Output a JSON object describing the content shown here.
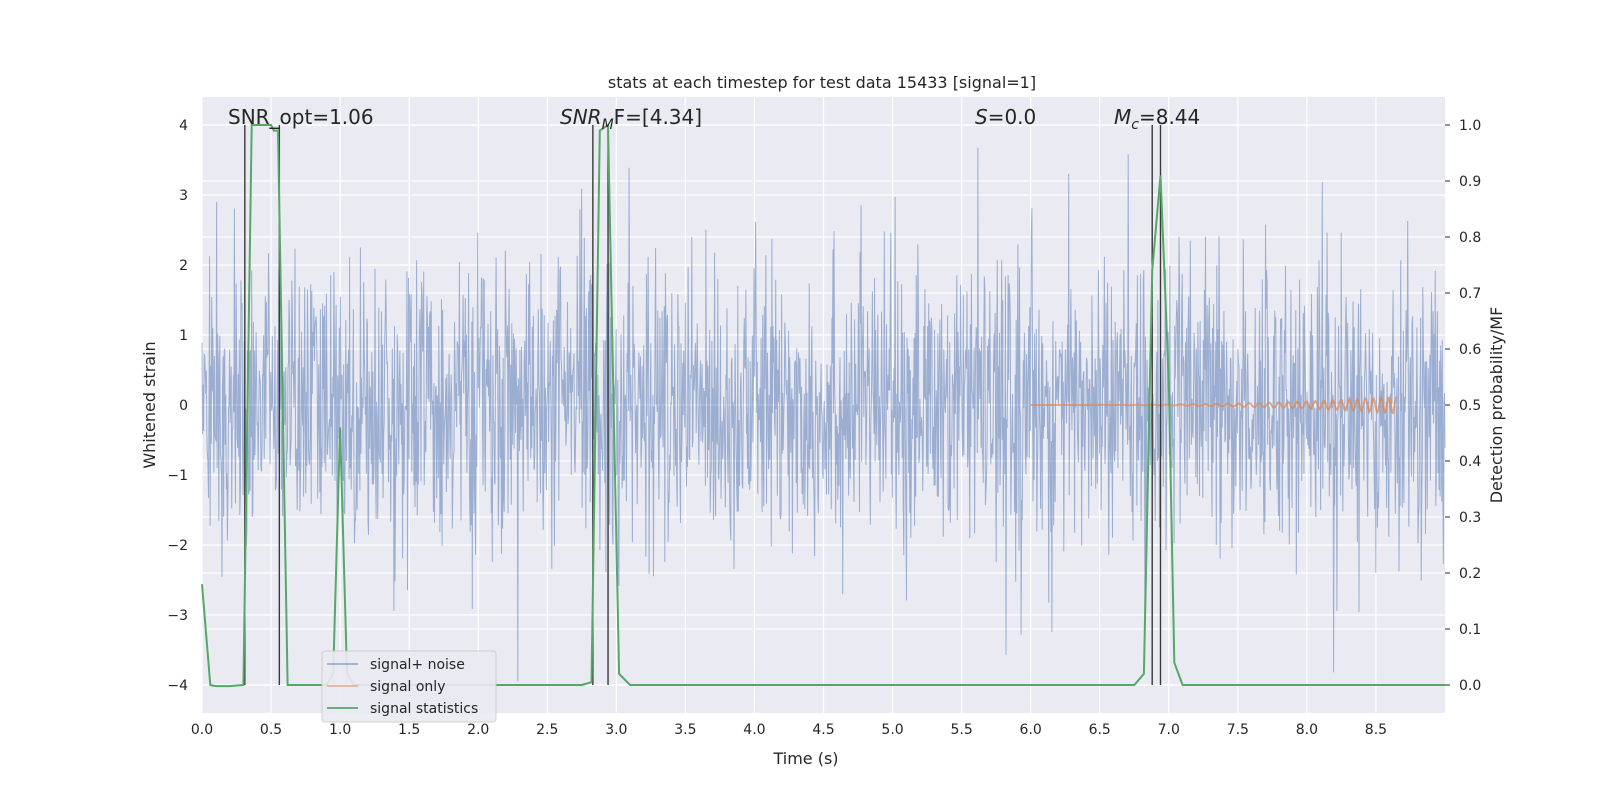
{
  "chart_data": {
    "type": "line",
    "title": "stats at each timestep for test data 15433 [signal=1]",
    "xlabel": "Time (s)",
    "ylabel": "Whitened strain",
    "ylabel_right": "Detection probability/MF",
    "xlim": [
      0.0,
      9.0
    ],
    "ylim": [
      -4.4,
      4.4
    ],
    "ylim_right": [
      -0.05,
      1.05
    ],
    "x_ticks": [
      "0.0",
      "0.5",
      "1.0",
      "1.5",
      "2.0",
      "2.5",
      "3.0",
      "3.5",
      "4.0",
      "4.5",
      "5.0",
      "5.5",
      "6.0",
      "6.5",
      "7.0",
      "7.5",
      "8.0",
      "8.5"
    ],
    "y_ticks": [
      "4",
      "3",
      "2",
      "1",
      "0",
      "−1",
      "−2",
      "−3",
      "−4"
    ],
    "y_ticks_right": [
      "1.0",
      "0.9",
      "0.8",
      "0.7",
      "0.6",
      "0.5",
      "0.4",
      "0.3",
      "0.2",
      "0.1",
      "0.0"
    ],
    "grid": true,
    "legend_position": "bottom-left",
    "annotations": [
      {
        "text": "SNR_opt=1.06"
      },
      {
        "text_main": "SNR",
        "text_sub": "M",
        "text_tail": "F=[4.34]"
      },
      {
        "text_main": "S",
        "text_tail": "=0.0"
      },
      {
        "text_main": "M",
        "text_sub": "c",
        "text_tail": "=8.44"
      }
    ],
    "series": [
      {
        "name": "signal+ noise",
        "color": "#4c72b0",
        "axis": "left",
        "description_type": "dense noisy strain, roughly within [-2.5, 2.8] with spikes to ±3.5"
      },
      {
        "name": "signal only",
        "color": "#dd8452",
        "axis": "left",
        "points": [
          [
            6.0,
            0.0
          ],
          [
            7.5,
            0.02
          ],
          [
            8.2,
            0.08
          ],
          [
            8.65,
            0.0
          ]
        ]
      },
      {
        "name": "signal statistics",
        "color": "#55a868",
        "axis": "right",
        "points": [
          [
            0.0,
            0.18
          ],
          [
            0.06,
            0.0
          ],
          [
            0.1,
            -0.002
          ],
          [
            0.2,
            -0.002
          ],
          [
            0.3,
            0.0
          ],
          [
            0.36,
            1.0
          ],
          [
            0.5,
            1.0
          ],
          [
            0.52,
            0.99
          ],
          [
            0.55,
            0.99
          ],
          [
            0.62,
            0.0
          ],
          [
            0.9,
            0.0
          ],
          [
            0.95,
            0.02
          ],
          [
            1.0,
            0.46
          ],
          [
            1.05,
            0.02
          ],
          [
            1.1,
            0.0
          ],
          [
            2.75,
            0.0
          ],
          [
            2.82,
            0.005
          ],
          [
            2.88,
            0.99
          ],
          [
            2.94,
            1.0
          ],
          [
            2.98,
            0.5
          ],
          [
            3.02,
            0.02
          ],
          [
            3.1,
            0.0
          ],
          [
            6.75,
            0.0
          ],
          [
            6.82,
            0.02
          ],
          [
            6.88,
            0.74
          ],
          [
            6.94,
            0.91
          ],
          [
            7.0,
            0.54
          ],
          [
            7.04,
            0.04
          ],
          [
            7.1,
            0.0
          ],
          [
            9.0,
            0.0
          ]
        ]
      }
    ],
    "vertical_lines_x": [
      0.31,
      0.56,
      2.83,
      2.94,
      6.88,
      6.94
    ]
  },
  "legend": {
    "items": [
      {
        "label": "signal+ noise",
        "color": "#4c72b0"
      },
      {
        "label": "signal only",
        "color": "#dd8452"
      },
      {
        "label": "signal statistics",
        "color": "#55a868"
      }
    ]
  },
  "colors": {
    "plot_background": "#eaeaf2",
    "grid": "#ffffff",
    "noise": "#4c72b0",
    "signal": "#dd8452",
    "stat": "#55a868",
    "vline": "#3a3a3a"
  }
}
